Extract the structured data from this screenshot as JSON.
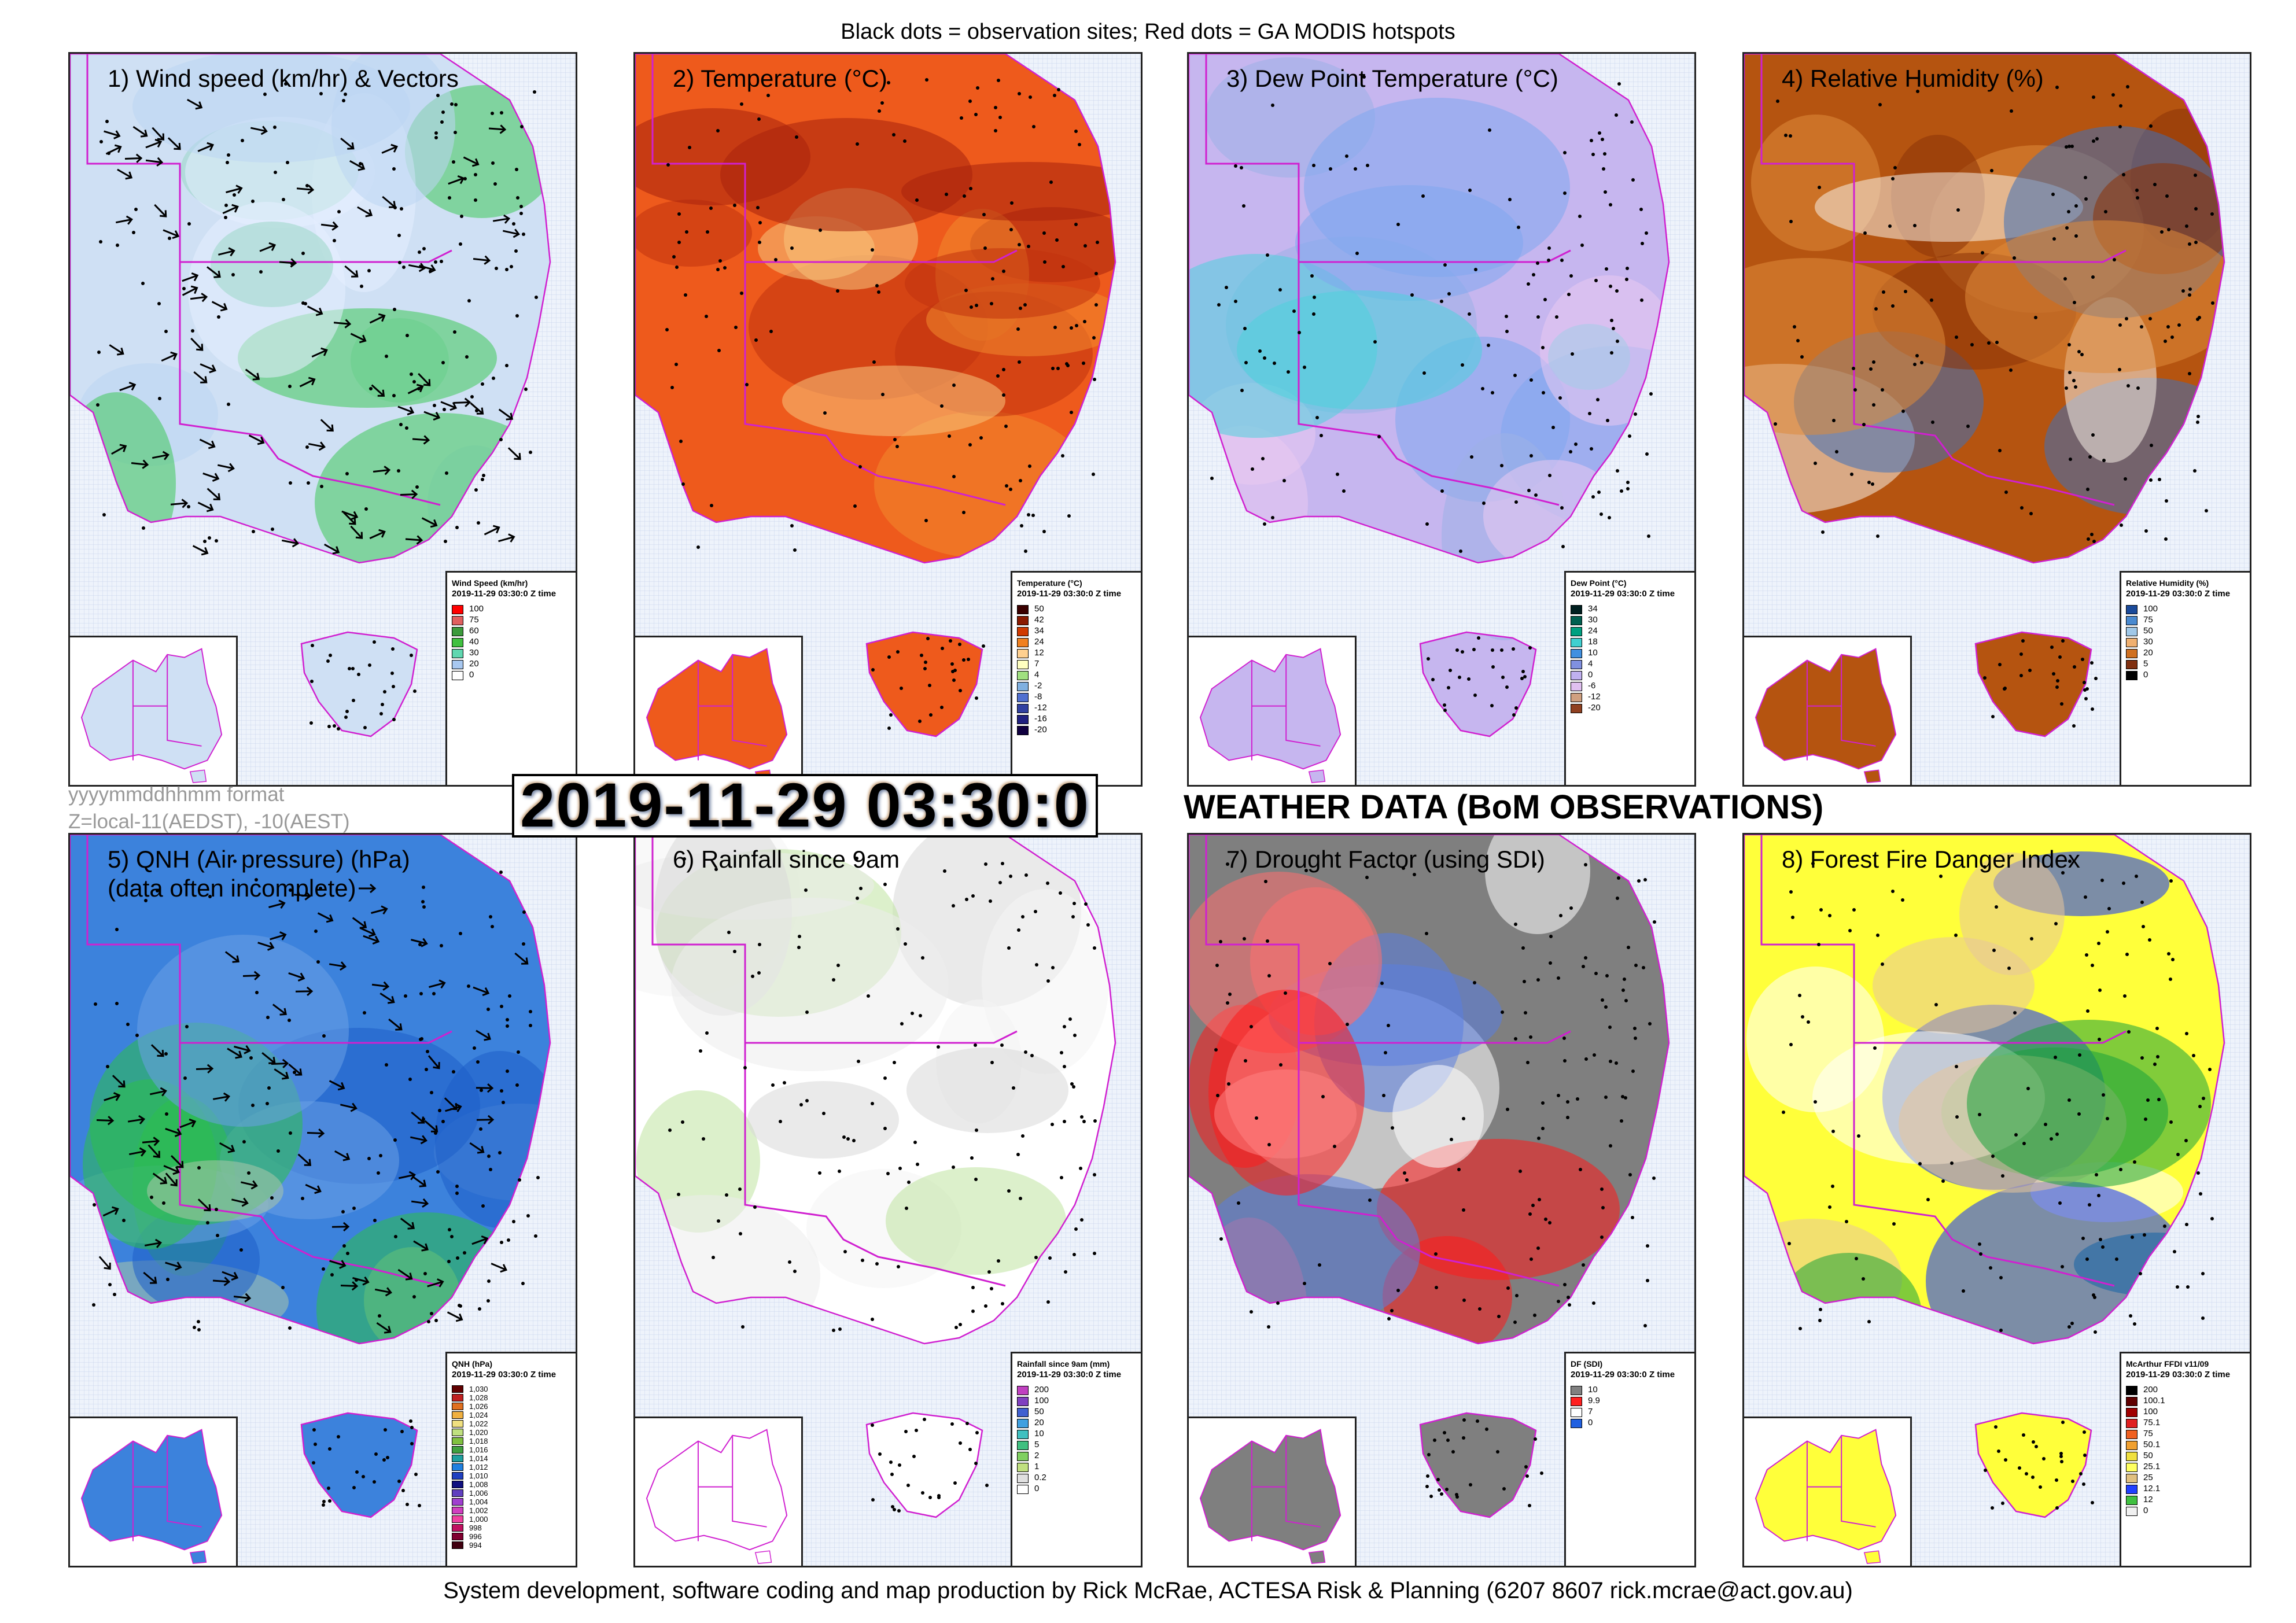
{
  "header": {
    "caption": "Black dots = observation sites; Red dots = GA MODIS hotspots"
  },
  "info": {
    "format_line1": "yyyymmddhhmm format",
    "format_line2": "Z=local-11(AEDST), -10(AEST)",
    "timestamp": "2019-11-29 03:30:0",
    "main_title": "WEATHER DATA (BoM OBSERVATIONS)"
  },
  "footer": {
    "credit": "System development, software coding and map production by Rick McRae, ACTESA Risk & Planning (6207 8607 rick.mcrae@act.gov.au)"
  },
  "panels": [
    {
      "title": "1) Wind speed (km/hr) & Vectors",
      "subtitle": "",
      "bg": "#cfe0f4",
      "blobs": [
        "#bcd6f2",
        "#3fc85a",
        "#e6efff",
        "#9bd7c7"
      ],
      "show_vectors": true,
      "legend": {
        "title": "Wind Speed (km/hr)",
        "time": "2019-11-29 03:30:0 Z time",
        "items": [
          {
            "label": "100",
            "color": "#ff0000"
          },
          {
            "label": "75",
            "color": "#e06060"
          },
          {
            "label": "60",
            "color": "#3c9a3c"
          },
          {
            "label": "40",
            "color": "#40c040"
          },
          {
            "label": "30",
            "color": "#60d7b0"
          },
          {
            "label": "20",
            "color": "#a8c8f0"
          },
          {
            "label": "0",
            "color": "#ffffff"
          }
        ]
      }
    },
    {
      "title": "2) Temperature (°C)",
      "subtitle": "",
      "bg": "#ee5a1c",
      "blobs": [
        "#a8220c",
        "#c1330f",
        "#f28b2e",
        "#f7c57c"
      ],
      "show_vectors": false,
      "legend": {
        "title": "Temperature (°C)",
        "time": "2019-11-29 03:30:0 Z time",
        "items": [
          {
            "label": "50",
            "color": "#3a0000"
          },
          {
            "label": "42",
            "color": "#8a1a00"
          },
          {
            "label": "34",
            "color": "#d03a00"
          },
          {
            "label": "24",
            "color": "#f08020"
          },
          {
            "label": "12",
            "color": "#ffd090"
          },
          {
            "label": "7",
            "color": "#ffffc0"
          },
          {
            "label": "4",
            "color": "#a0e080"
          },
          {
            "label": "-2",
            "color": "#80b0e0"
          },
          {
            "label": "-8",
            "color": "#5070d0"
          },
          {
            "label": "-12",
            "color": "#3040a0"
          },
          {
            "label": "-16",
            "color": "#202080"
          },
          {
            "label": "-20",
            "color": "#100040"
          }
        ]
      }
    },
    {
      "title": "3) Dew Point Temperature (°C)",
      "subtitle": "",
      "bg": "#c6b6ef",
      "blobs": [
        "#7fa8ee",
        "#e9c9f0",
        "#4fd2dd",
        "#9cb0e6"
      ],
      "show_vectors": false,
      "legend": {
        "title": "Dew Point (°C)",
        "time": "2019-11-29 03:30:0 Z time",
        "items": [
          {
            "label": "34",
            "color": "#002020"
          },
          {
            "label": "30",
            "color": "#006050"
          },
          {
            "label": "24",
            "color": "#00a080"
          },
          {
            "label": "18",
            "color": "#40d0d0"
          },
          {
            "label": "10",
            "color": "#4090e0"
          },
          {
            "label": "4",
            "color": "#8090e0"
          },
          {
            "label": "0",
            "color": "#c0b0f0"
          },
          {
            "label": "-6",
            "color": "#e0c0f0"
          },
          {
            "label": "-12",
            "color": "#d0a080"
          },
          {
            "label": "-20",
            "color": "#904020"
          }
        ]
      }
    },
    {
      "title": "4) Relative Humidity (%)",
      "subtitle": "",
      "bg": "#b55410",
      "blobs": [
        "#8a3308",
        "#de8a3a",
        "#f5efe6",
        "#3e70b8"
      ],
      "show_vectors": false,
      "legend": {
        "title": "Relative Humidity (%)",
        "time": "2019-11-29 03:30:0 Z time",
        "items": [
          {
            "label": "100",
            "color": "#1a4a9a"
          },
          {
            "label": "75",
            "color": "#4a8ad0"
          },
          {
            "label": "50",
            "color": "#a0c8e8"
          },
          {
            "label": "30",
            "color": "#f0b070"
          },
          {
            "label": "20",
            "color": "#d07020"
          },
          {
            "label": "5",
            "color": "#803010"
          },
          {
            "label": "0",
            "color": "#000000"
          }
        ]
      }
    },
    {
      "title": "5) QNH (Air pressure) (hPa)",
      "subtitle": "(data often incomplete)",
      "bg": "#3c82dc",
      "blobs": [
        "#6aa0e6",
        "#2bbf4a",
        "#a9c6a9",
        "#1d5fc8"
      ],
      "show_vectors": true,
      "legend": {
        "title": "QNH (hPa)",
        "time": "2019-11-29 03:30:0 Z time",
        "items": [
          {
            "label": "1,030",
            "color": "#600000"
          },
          {
            "label": "1,028",
            "color": "#c02020"
          },
          {
            "label": "1,026",
            "color": "#e07020"
          },
          {
            "label": "1,024",
            "color": "#f0b040"
          },
          {
            "label": "1,022",
            "color": "#f0e080"
          },
          {
            "label": "1,020",
            "color": "#c0e080"
          },
          {
            "label": "1,018",
            "color": "#80c040"
          },
          {
            "label": "1,016",
            "color": "#40a040"
          },
          {
            "label": "1,014",
            "color": "#20a0a0"
          },
          {
            "label": "1,012",
            "color": "#2080e0"
          },
          {
            "label": "1,010",
            "color": "#2040c0"
          },
          {
            "label": "1,008",
            "color": "#101080"
          },
          {
            "label": "1,006",
            "color": "#6040c0"
          },
          {
            "label": "1,004",
            "color": "#a040d0"
          },
          {
            "label": "1,002",
            "color": "#d040c0"
          },
          {
            "label": "1,000",
            "color": "#f040a0"
          },
          {
            "label": "998",
            "color": "#c01060"
          },
          {
            "label": "996",
            "color": "#800030"
          },
          {
            "label": "994",
            "color": "#400010"
          }
        ]
      }
    },
    {
      "title": "6) Rainfall since 9am",
      "subtitle": "",
      "bg": "#ffffff",
      "blobs": [
        "#f4f4f4",
        "#d8d8d8",
        "#bfe3a0",
        "#ececec"
      ],
      "show_vectors": false,
      "legend": {
        "title": "Rainfall since 9am (mm)",
        "time": "2019-11-29 03:30:0 Z time",
        "items": [
          {
            "label": "200",
            "color": "#c040c0"
          },
          {
            "label": "100",
            "color": "#8040c0"
          },
          {
            "label": "50",
            "color": "#4060d0"
          },
          {
            "label": "20",
            "color": "#40a0e0"
          },
          {
            "label": "10",
            "color": "#40c0c0"
          },
          {
            "label": "5",
            "color": "#40c080"
          },
          {
            "label": "2",
            "color": "#80d060"
          },
          {
            "label": "1",
            "color": "#c0e080"
          },
          {
            "label": "0.2",
            "color": "#e0e0e0"
          },
          {
            "label": "0",
            "color": "#ffffff"
          }
        ]
      }
    },
    {
      "title": "7) Drought Factor (using SDI)",
      "subtitle": "",
      "bg": "#7f7f7f",
      "blobs": [
        "#ff1a1a",
        "#ffffff",
        "#5a7ee0",
        "#ff7070"
      ],
      "show_vectors": false,
      "legend": {
        "title": "DF (SDI)",
        "time": "2019-11-29 03:30:0 Z time",
        "items": [
          {
            "label": "10",
            "color": "#808080"
          },
          {
            "label": "9.9",
            "color": "#ff2020"
          },
          {
            "label": "7",
            "color": "#ffffff"
          },
          {
            "label": "0",
            "color": "#2060e0"
          }
        ]
      }
    },
    {
      "title": "8) Forest Fire Danger Index",
      "subtitle": "",
      "bg": "#ffff3a",
      "blobs": [
        "#e8c79b",
        "#1aa33a",
        "#1030ff",
        "#ffffff"
      ],
      "show_vectors": false,
      "legend": {
        "title": "McArthur FFDI v11/09",
        "time": "2019-11-29 03:30:0 Z time",
        "items": [
          {
            "label": "200",
            "color": "#000000"
          },
          {
            "label": "100.1",
            "color": "#600000"
          },
          {
            "label": "100",
            "color": "#a00000"
          },
          {
            "label": "75.1",
            "color": "#e02020"
          },
          {
            "label": "75",
            "color": "#f06020"
          },
          {
            "label": "50.1",
            "color": "#f0a030"
          },
          {
            "label": "50",
            "color": "#f0e040"
          },
          {
            "label": "25.1",
            "color": "#ffff60"
          },
          {
            "label": "25",
            "color": "#e0c080"
          },
          {
            "label": "12.1",
            "color": "#2040ff"
          },
          {
            "label": "12",
            "color": "#40c040"
          },
          {
            "label": "0",
            "color": "#f0f0f0"
          }
        ]
      }
    }
  ]
}
